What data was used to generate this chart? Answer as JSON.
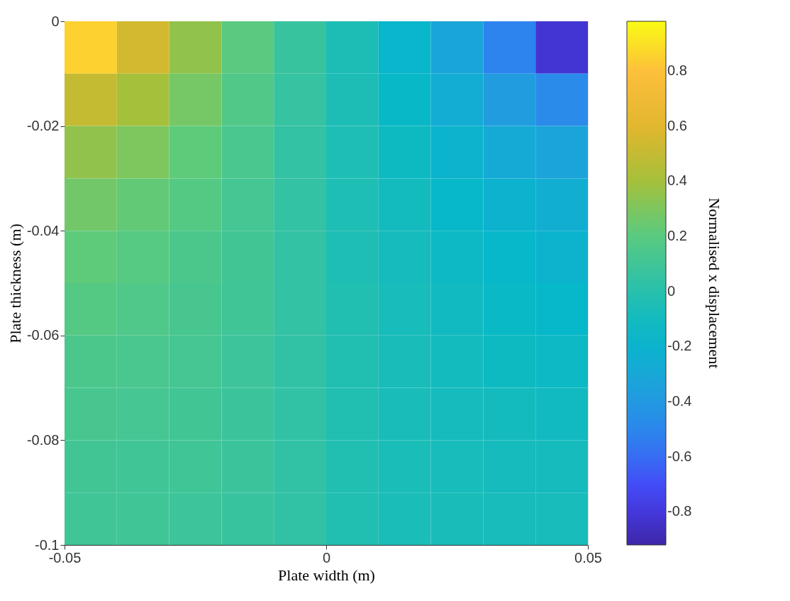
{
  "chart_data": {
    "type": "heatmap",
    "xlabel": "Plate width (m)",
    "ylabel": "Plate thickness (m)",
    "clabel": "Normalised x displacement",
    "x": [
      -0.045,
      -0.035,
      -0.025,
      -0.015,
      -0.005,
      0.005,
      0.015,
      0.025,
      0.035,
      0.045
    ],
    "y": [
      -0.005,
      -0.015,
      -0.025,
      -0.035,
      -0.045,
      -0.055,
      -0.065,
      -0.075,
      -0.085,
      -0.095
    ],
    "xlim": [
      -0.05,
      0.05
    ],
    "xticks": [
      -0.05,
      0,
      0.05
    ],
    "ylim": [
      -0.1,
      0
    ],
    "yticks": [
      -0.1,
      -0.08,
      -0.06,
      -0.04,
      -0.02,
      0
    ],
    "clim": [
      -0.92,
      0.98
    ],
    "cticks": [
      -0.8,
      -0.6,
      -0.4,
      -0.2,
      0,
      0.2,
      0.4,
      0.6,
      0.8
    ],
    "cells": [
      [
        0.85,
        0.55,
        0.35,
        0.2,
        0.07,
        -0.05,
        -0.18,
        -0.32,
        -0.52,
        -0.82
      ],
      [
        0.5,
        0.4,
        0.28,
        0.17,
        0.06,
        -0.05,
        -0.15,
        -0.26,
        -0.38,
        -0.48
      ],
      [
        0.35,
        0.3,
        0.22,
        0.14,
        0.05,
        -0.04,
        -0.12,
        -0.2,
        -0.28,
        -0.33
      ],
      [
        0.27,
        0.23,
        0.18,
        0.12,
        0.05,
        -0.04,
        -0.1,
        -0.16,
        -0.21,
        -0.25
      ],
      [
        0.22,
        0.19,
        0.15,
        0.11,
        0.05,
        -0.04,
        -0.09,
        -0.13,
        -0.17,
        -0.2
      ],
      [
        0.18,
        0.16,
        0.13,
        0.1,
        0.05,
        -0.03,
        -0.08,
        -0.11,
        -0.14,
        -0.16
      ],
      [
        0.15,
        0.14,
        0.12,
        0.09,
        0.04,
        -0.03,
        -0.07,
        -0.1,
        -0.12,
        -0.13
      ],
      [
        0.13,
        0.12,
        0.11,
        0.08,
        0.04,
        -0.03,
        -0.07,
        -0.09,
        -0.1,
        -0.11
      ],
      [
        0.11,
        0.1,
        0.1,
        0.08,
        0.04,
        -0.03,
        -0.06,
        -0.08,
        -0.09,
        -0.09
      ],
      [
        0.1,
        0.1,
        0.09,
        0.07,
        0.04,
        -0.03,
        -0.06,
        -0.07,
        -0.08,
        -0.08
      ]
    ]
  }
}
